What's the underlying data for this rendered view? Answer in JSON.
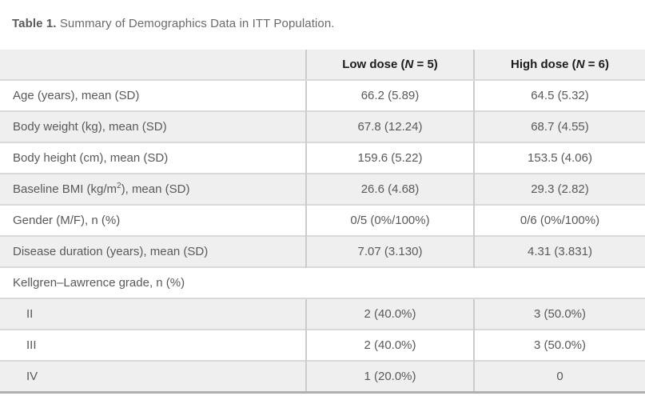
{
  "caption": {
    "label": "Table 1.",
    "text": " Summary of Demographics Data in ITT Population."
  },
  "header": {
    "row_label_column": "",
    "low": {
      "pre": "Low dose (",
      "n": "N",
      "post": " = 5)"
    },
    "high": {
      "pre": "High dose (",
      "n": "N",
      "post": " = 6)"
    }
  },
  "rows": [
    {
      "label": "Age (years), mean (SD)",
      "low": "66.2 (5.89)",
      "high": "64.5 (5.32)"
    },
    {
      "label": "Body weight (kg), mean (SD)",
      "low": "67.8 (12.24)",
      "high": "68.7 (4.55)"
    },
    {
      "label": "Body height (cm), mean (SD)",
      "low": "159.6 (5.22)",
      "high": "153.5 (4.06)"
    },
    {
      "label_pre": "Baseline BMI (kg/m",
      "label_sup": "2",
      "label_post": "), mean (SD)",
      "low": "26.6 (4.68)",
      "high": "29.3 (2.82)"
    },
    {
      "label": "Gender (M/F), n (%)",
      "low": "0/5 (0%/100%)",
      "high": "0/6 (0%/100%)"
    },
    {
      "label": "Disease duration (years), mean (SD)",
      "low": "7.07 (3.130)",
      "high": "4.31 (3.831)"
    },
    {
      "label": "Kellgren–Lawrence grade, n (%)"
    },
    {
      "label": "II",
      "low": "2 (40.0%)",
      "high": "3 (50.0%)"
    },
    {
      "label": "III",
      "low": "2 (40.0%)",
      "high": "3 (50.0%)"
    },
    {
      "label": "IV",
      "low": "1 (20.0%)",
      "high": "0"
    }
  ]
}
